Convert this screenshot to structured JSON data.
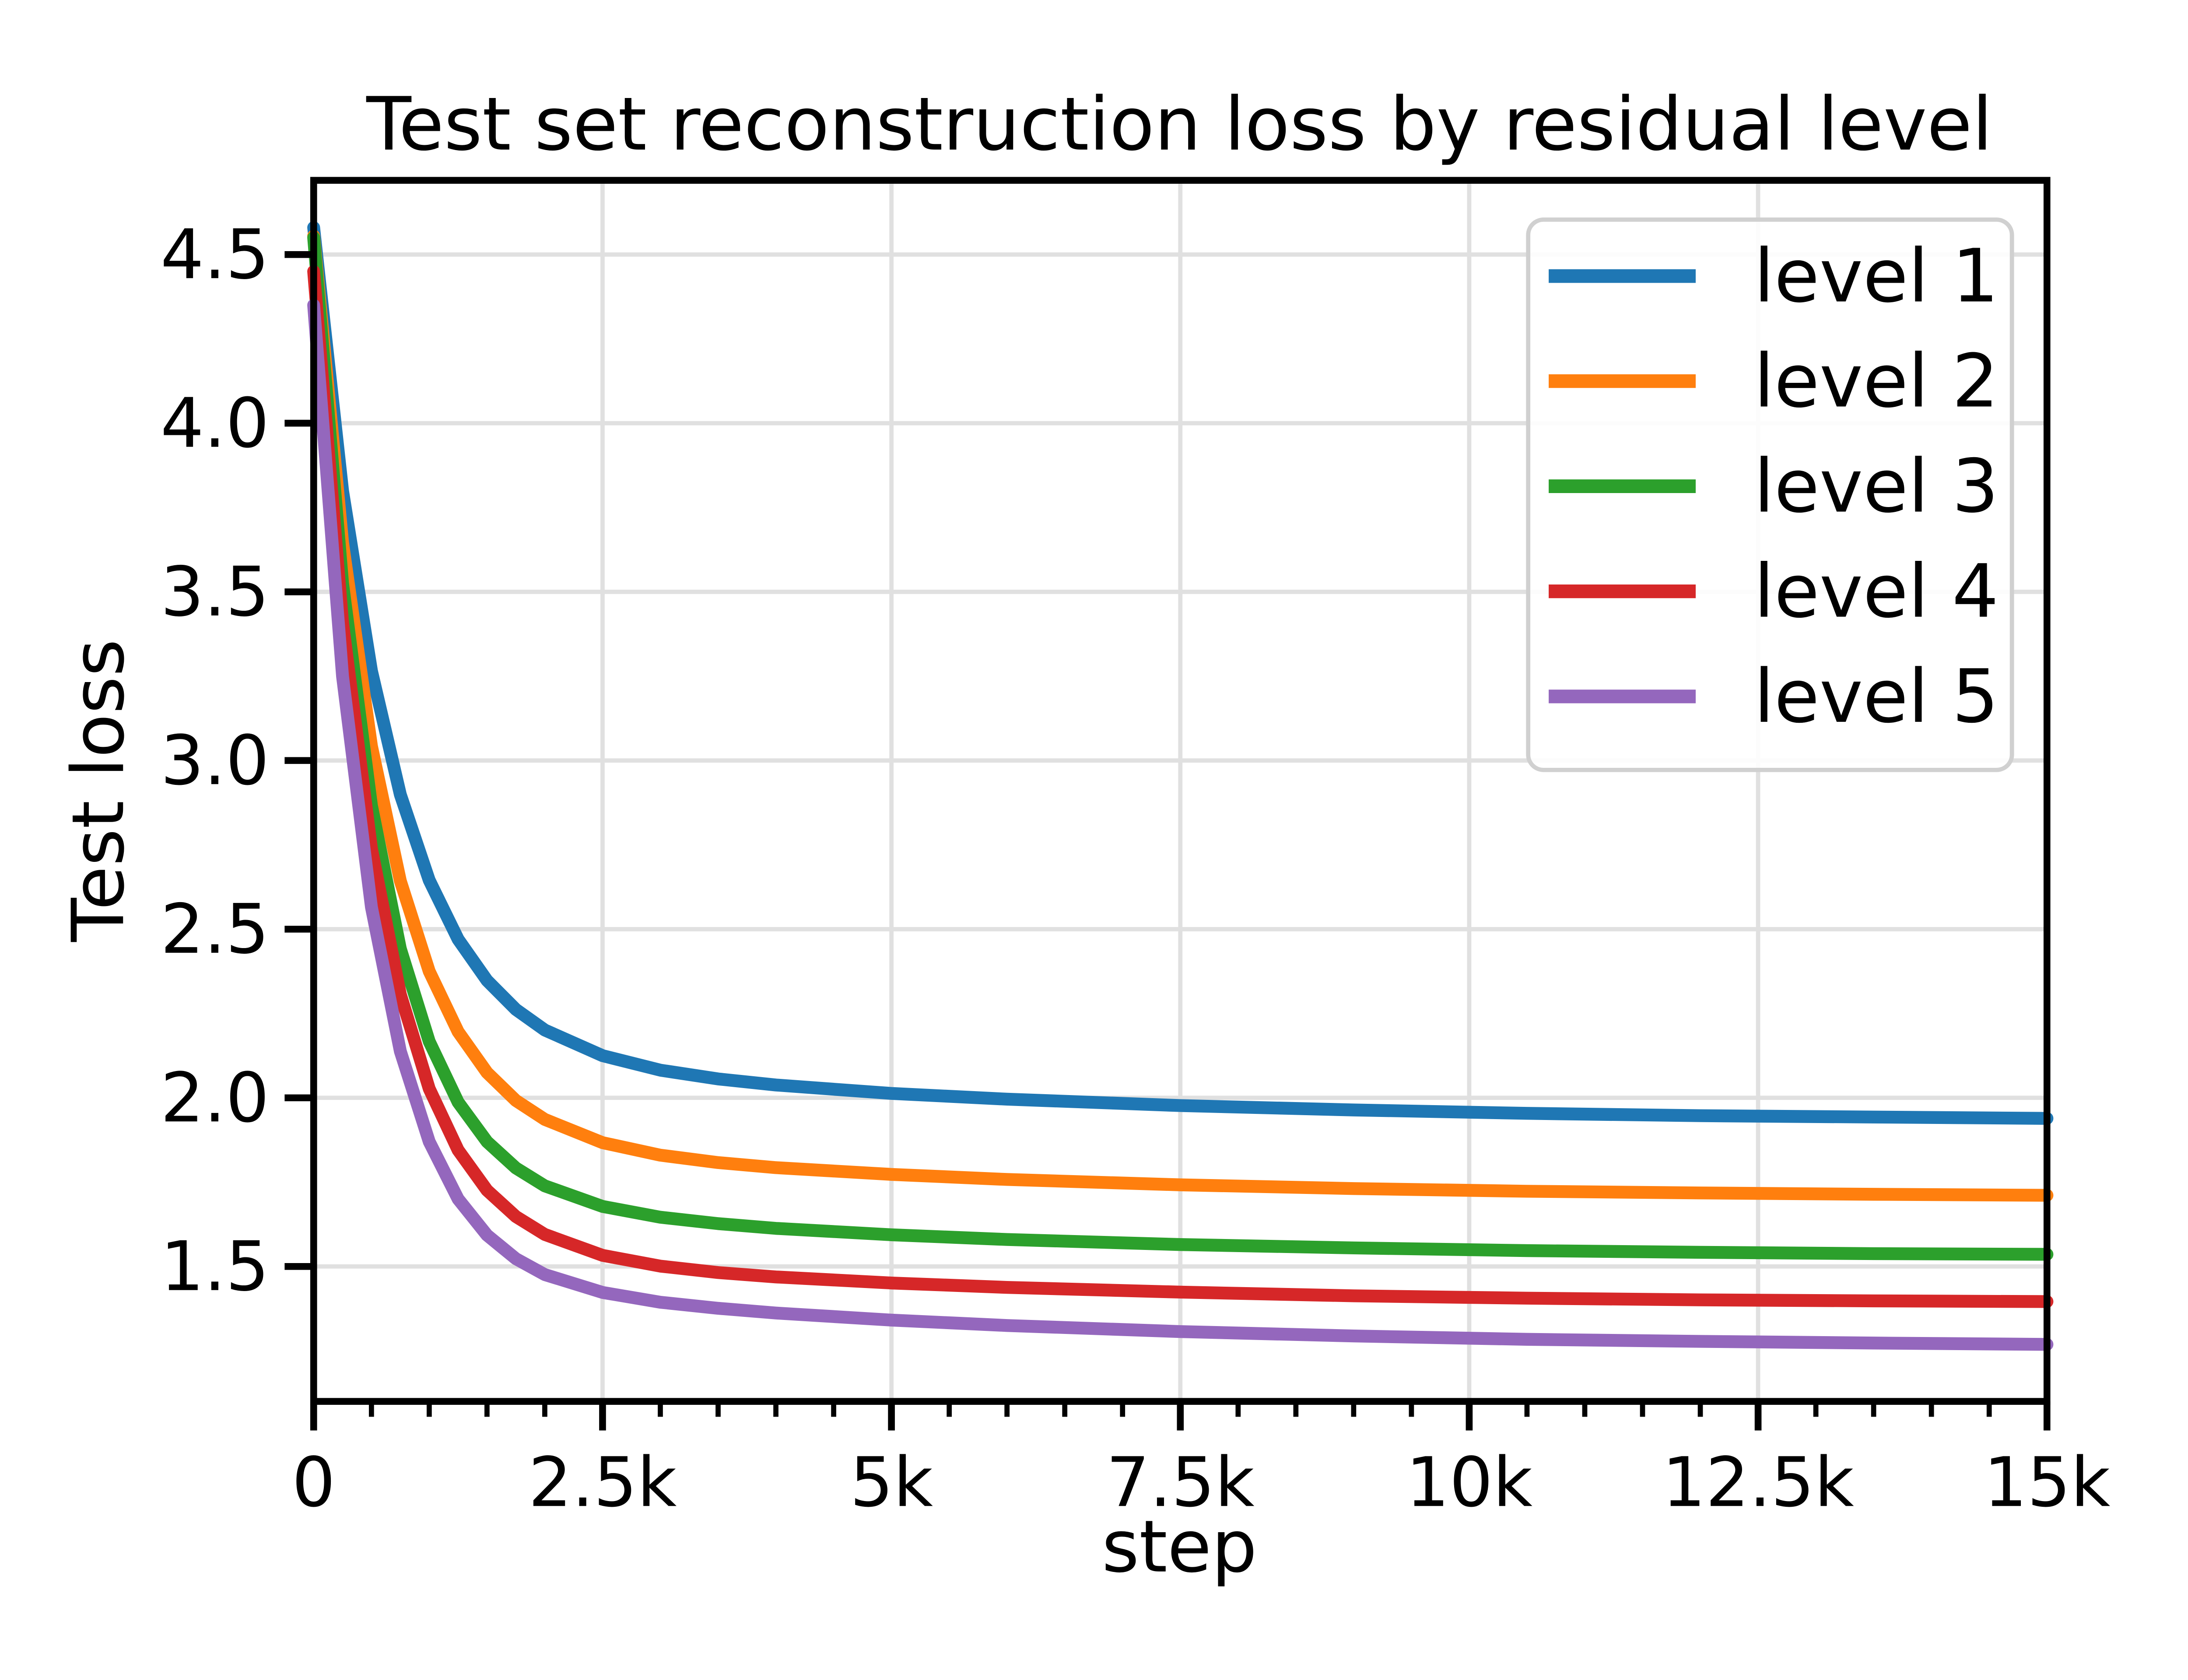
{
  "figure": {
    "background_color": "#ffffff",
    "text_color": "#000000",
    "grid_color": "#e0e0e0",
    "spine_color": "#000000",
    "legend_border_color": "#d0d0d0",
    "legend_background_color": "#ffffff"
  },
  "chart_data": {
    "type": "line",
    "title": "Test set reconstruction loss by residual level",
    "xlabel": "step",
    "ylabel": "Test loss",
    "xlim": [
      0,
      15000
    ],
    "ylim": [
      1.1,
      4.72
    ],
    "grid": true,
    "legend_position": "upper right",
    "x_ticks": [
      {
        "value": 0,
        "label": "0"
      },
      {
        "value": 2500,
        "label": "2.5k"
      },
      {
        "value": 5000,
        "label": "5k"
      },
      {
        "value": 7500,
        "label": "7.5k"
      },
      {
        "value": 10000,
        "label": "10k"
      },
      {
        "value": 12500,
        "label": "12.5k"
      },
      {
        "value": 15000,
        "label": "15k"
      }
    ],
    "x_minor_tick_interval": 500,
    "y_ticks": [
      {
        "value": 1.5,
        "label": "1.5"
      },
      {
        "value": 2.0,
        "label": "2.0"
      },
      {
        "value": 2.5,
        "label": "2.5"
      },
      {
        "value": 3.0,
        "label": "3.0"
      },
      {
        "value": 3.5,
        "label": "3.5"
      },
      {
        "value": 4.0,
        "label": "4.0"
      },
      {
        "value": 4.5,
        "label": "4.5"
      }
    ],
    "x": [
      0,
      250,
      500,
      750,
      1000,
      1250,
      1500,
      1750,
      2000,
      2500,
      3000,
      3500,
      4000,
      5000,
      6000,
      7500,
      9000,
      10500,
      12000,
      13500,
      15000
    ],
    "series": [
      {
        "name": "level 1",
        "color": "#1f77b4",
        "values": [
          4.58,
          3.8,
          3.266,
          2.899,
          2.645,
          2.47,
          2.348,
          2.262,
          2.201,
          2.125,
          2.082,
          2.056,
          2.038,
          2.013,
          1.996,
          1.977,
          1.964,
          1.954,
          1.947,
          1.943,
          1.939
        ]
      },
      {
        "name": "level 2",
        "color": "#ff7f0e",
        "values": [
          4.555,
          3.646,
          3.043,
          2.643,
          2.375,
          2.196,
          2.075,
          1.992,
          1.936,
          1.867,
          1.83,
          1.808,
          1.793,
          1.773,
          1.758,
          1.742,
          1.731,
          1.723,
          1.718,
          1.714,
          1.711
        ]
      },
      {
        "name": "level 3",
        "color": "#2ca02c",
        "values": [
          4.55,
          3.526,
          2.867,
          2.442,
          2.167,
          1.987,
          1.87,
          1.792,
          1.739,
          1.678,
          1.646,
          1.627,
          1.613,
          1.594,
          1.58,
          1.565,
          1.555,
          1.547,
          1.542,
          1.538,
          1.536
        ]
      },
      {
        "name": "level 4",
        "color": "#d62728",
        "values": [
          4.45,
          3.409,
          2.739,
          2.307,
          2.027,
          1.845,
          1.726,
          1.648,
          1.595,
          1.533,
          1.501,
          1.482,
          1.469,
          1.451,
          1.438,
          1.424,
          1.413,
          1.406,
          1.401,
          1.398,
          1.396
        ]
      },
      {
        "name": "level 5",
        "color": "#9467bd",
        "values": [
          4.35,
          3.249,
          2.565,
          2.138,
          1.87,
          1.7,
          1.593,
          1.523,
          1.476,
          1.423,
          1.394,
          1.376,
          1.362,
          1.341,
          1.325,
          1.307,
          1.294,
          1.284,
          1.278,
          1.273,
          1.269
        ]
      }
    ]
  }
}
